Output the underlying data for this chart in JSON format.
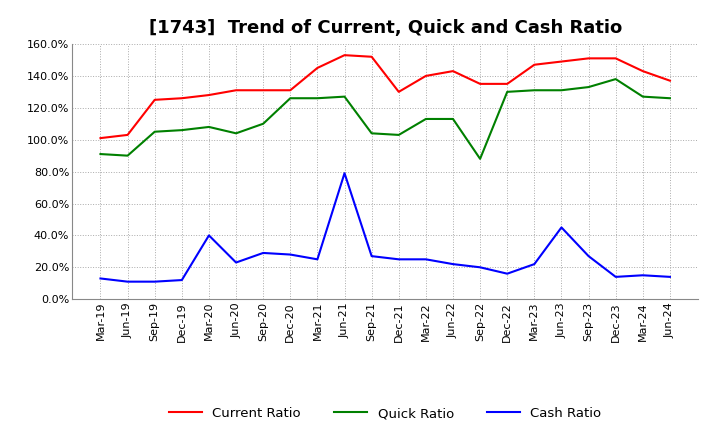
{
  "title": "[1743]  Trend of Current, Quick and Cash Ratio",
  "x_labels": [
    "Mar-19",
    "Jun-19",
    "Sep-19",
    "Dec-19",
    "Mar-20",
    "Jun-20",
    "Sep-20",
    "Dec-20",
    "Mar-21",
    "Jun-21",
    "Sep-21",
    "Dec-21",
    "Mar-22",
    "Jun-22",
    "Sep-22",
    "Dec-22",
    "Mar-23",
    "Jun-23",
    "Sep-23",
    "Dec-23",
    "Mar-24",
    "Jun-24"
  ],
  "current_ratio": [
    101,
    103,
    125,
    126,
    128,
    131,
    131,
    131,
    145,
    153,
    152,
    130,
    140,
    143,
    135,
    135,
    147,
    149,
    151,
    151,
    143,
    137
  ],
  "quick_ratio": [
    91,
    90,
    105,
    106,
    108,
    104,
    110,
    126,
    126,
    127,
    104,
    103,
    113,
    113,
    88,
    130,
    131,
    131,
    133,
    138,
    127,
    126
  ],
  "cash_ratio": [
    13,
    11,
    11,
    12,
    40,
    23,
    29,
    28,
    25,
    79,
    27,
    25,
    25,
    22,
    20,
    16,
    22,
    45,
    27,
    14,
    15,
    14
  ],
  "ylim": [
    0,
    160
  ],
  "yticks": [
    0,
    20,
    40,
    60,
    80,
    100,
    120,
    140,
    160
  ],
  "current_color": "#ff0000",
  "quick_color": "#008000",
  "cash_color": "#0000ff",
  "fig_bg_color": "#ffffff",
  "plot_bg_color": "#ffffff",
  "grid_color": "#aaaaaa",
  "title_fontsize": 13,
  "axis_fontsize": 8,
  "legend_fontsize": 9.5
}
